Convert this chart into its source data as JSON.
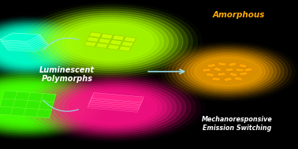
{
  "background_color": "#000000",
  "title_text": "Luminescent\nPolymorphs",
  "title_color": "#ffffff",
  "amorphous_label": "Amorphous",
  "amorphous_color": "#ffaa00",
  "mechano_label": "Mechanoresponsive\nEmission Switching",
  "mechano_color": "#ffffff",
  "arrow_color": "#99ddee",
  "figsize": [
    3.78,
    1.89
  ],
  "dpi": 100
}
